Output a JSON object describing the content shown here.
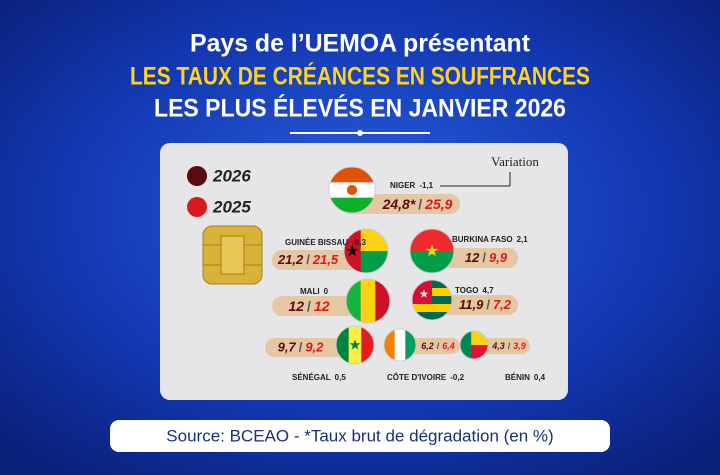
{
  "header": {
    "line1": "Pays de l’UEMOA présentant",
    "line2": "LES TAUX DE CRÉANCES EN SOUFFRANCES",
    "line3": "LES PLUS ÉLEVÉS EN JANVIER 2026"
  },
  "legend": [
    {
      "label": "2026",
      "color": "#5a0c0c"
    },
    {
      "label": "2025",
      "color": "#d81a1a"
    }
  ],
  "variation_label": "Variation",
  "separator": "/",
  "countries": [
    {
      "name": "NIGER",
      "variation": "-1,1",
      "value_2026": "24,8*",
      "value_2025": "25,9"
    },
    {
      "name": "GUINÉE BISSAU",
      "variation": "-0,3",
      "value_2026": "21,2",
      "value_2025": "21,5"
    },
    {
      "name": "BURKINA FASO",
      "variation": "2,1",
      "value_2026": "12",
      "value_2025": "9,9"
    },
    {
      "name": "MALI",
      "variation": "0",
      "value_2026": "12",
      "value_2025": "12"
    },
    {
      "name": "TOGO",
      "variation": "4,7",
      "value_2026": "11,9",
      "value_2025": "7,2"
    },
    {
      "name": "SÉNÉGAL",
      "variation": "0,5",
      "value_2026": "9,7",
      "value_2025": "9,2"
    },
    {
      "name": "CÔTE D'IVOIRE",
      "variation": "-0,2",
      "value_2026": "6,2",
      "value_2025": "6,4"
    },
    {
      "name": "BÉNIN",
      "variation": "0,4",
      "value_2026": "4,3",
      "value_2025": "3,9"
    }
  ],
  "source": "Source: BCEAO - *Taux brut de dégradation (en %)"
}
